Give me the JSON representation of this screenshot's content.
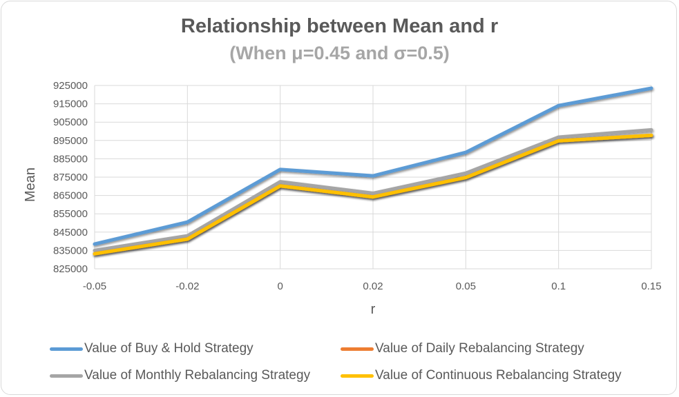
{
  "chart_data": {
    "type": "line",
    "title": "Relationship between Mean and r",
    "subtitle": "(When μ=0.45 and σ=0.5)",
    "xlabel": "r",
    "ylabel": "Mean",
    "categories": [
      "-0.05",
      "-0.02",
      "0",
      "0.02",
      "0.05",
      "0.1",
      "0.15"
    ],
    "ylim": [
      825000,
      925000
    ],
    "yticks": [
      "925000",
      "915000",
      "905000",
      "895000",
      "885000",
      "875000",
      "865000",
      "855000",
      "845000",
      "835000",
      "825000"
    ],
    "grid": true,
    "legend_position": "bottom",
    "series": [
      {
        "name": "Value of Buy & Hold Strategy",
        "color": "#5b9bd5",
        "values": [
          838500,
          850500,
          879200,
          875700,
          888500,
          914000,
          923500
        ]
      },
      {
        "name": "Value of Daily Rebalancing Strategy",
        "color": "#ed7d31",
        "values": [
          833200,
          841200,
          870200,
          864200,
          874800,
          894800,
          897800
        ]
      },
      {
        "name": "Value of Monthly Rebalancing Strategy",
        "color": "#a5a5a5",
        "values": [
          835000,
          843000,
          872500,
          866200,
          877200,
          896800,
          900800
        ]
      },
      {
        "name": "Value of Continuous Rebalancing Strategy",
        "color": "#ffc000",
        "values": [
          833200,
          841200,
          870200,
          864200,
          874800,
          894800,
          897800
        ]
      }
    ]
  }
}
